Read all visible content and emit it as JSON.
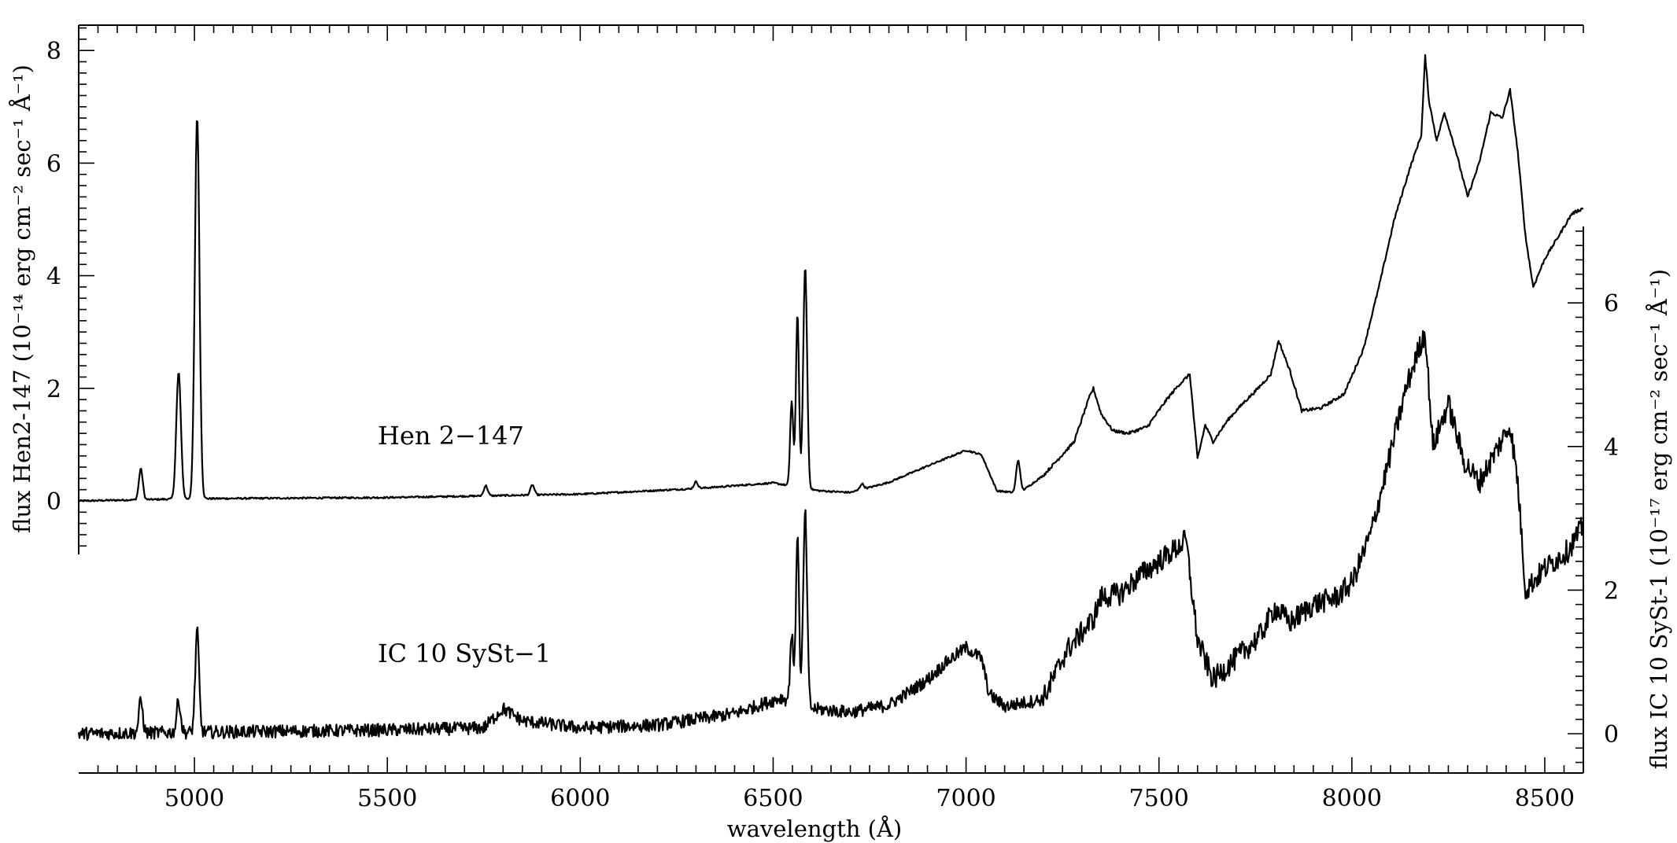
{
  "chart_data": {
    "type": "line",
    "title": "",
    "xlabel": "wavelength (Å)",
    "ylabel_left": "flux Hen2-147 (10⁻¹⁴ erg cm⁻² sec⁻¹ Å⁻¹)",
    "ylabel_right": "flux IC 10 SySt-1  (10⁻¹⁷ erg cm⁻² sec⁻¹ Å⁻¹)",
    "xlim": [
      4700,
      8600
    ],
    "ylim_left": [
      -1.0,
      8.4
    ],
    "ylim_right": [
      -0.55,
      7.2
    ],
    "x_ticks": [
      5000,
      5500,
      6000,
      6500,
      7000,
      7500,
      8000,
      8500
    ],
    "x_tick_labels": [
      "5000",
      "5500",
      "6000",
      "6500",
      "7000",
      "7500",
      "8000",
      "8500"
    ],
    "y_left_ticks": [
      0,
      2,
      4,
      6,
      8
    ],
    "y_left_tick_labels": [
      "0",
      "2",
      "4",
      "6",
      "8"
    ],
    "y_right_ticks": [
      0,
      2,
      4,
      6
    ],
    "y_right_tick_labels": [
      "0",
      "2",
      "4",
      "6"
    ],
    "grid": false,
    "series": [
      {
        "name": "Hen 2-147",
        "axis": "left",
        "baseline": [
          [
            4700,
            0.0
          ],
          [
            4850,
            0.02
          ],
          [
            5000,
            0.04
          ],
          [
            5500,
            0.06
          ],
          [
            6000,
            0.12
          ],
          [
            6300,
            0.22
          ],
          [
            6500,
            0.32
          ],
          [
            6620,
            0.18
          ],
          [
            6700,
            0.15
          ],
          [
            6800,
            0.33
          ],
          [
            6900,
            0.62
          ],
          [
            7000,
            0.9
          ],
          [
            7040,
            0.82
          ],
          [
            7080,
            0.18
          ],
          [
            7120,
            0.15
          ],
          [
            7150,
            0.2
          ],
          [
            7200,
            0.45
          ],
          [
            7280,
            1.05
          ],
          [
            7320,
            1.85
          ],
          [
            7330,
            2.0
          ],
          [
            7350,
            1.55
          ],
          [
            7380,
            1.25
          ],
          [
            7420,
            1.2
          ],
          [
            7470,
            1.32
          ],
          [
            7520,
            1.8
          ],
          [
            7550,
            2.05
          ],
          [
            7580,
            2.25
          ],
          [
            7600,
            0.75
          ],
          [
            7620,
            1.35
          ],
          [
            7640,
            1.05
          ],
          [
            7680,
            1.45
          ],
          [
            7720,
            1.75
          ],
          [
            7750,
            1.95
          ],
          [
            7790,
            2.25
          ],
          [
            7810,
            2.85
          ],
          [
            7840,
            2.3
          ],
          [
            7870,
            1.6
          ],
          [
            7920,
            1.65
          ],
          [
            7980,
            1.9
          ],
          [
            8030,
            2.7
          ],
          [
            8070,
            3.8
          ],
          [
            8110,
            5.0
          ],
          [
            8150,
            5.9
          ],
          [
            8180,
            6.5
          ],
          [
            8190,
            7.9
          ],
          [
            8200,
            7.1
          ],
          [
            8220,
            6.4
          ],
          [
            8240,
            6.9
          ],
          [
            8270,
            6.2
          ],
          [
            8300,
            5.4
          ],
          [
            8330,
            6.0
          ],
          [
            8360,
            6.9
          ],
          [
            8390,
            6.8
          ],
          [
            8410,
            7.3
          ],
          [
            8430,
            6.2
          ],
          [
            8450,
            4.7
          ],
          [
            8470,
            3.8
          ],
          [
            8500,
            4.3
          ],
          [
            8540,
            4.75
          ],
          [
            8570,
            5.1
          ],
          [
            8600,
            5.2
          ]
        ],
        "peaks": [
          [
            4861,
            0.55,
            5
          ],
          [
            4959,
            2.25,
            6
          ],
          [
            5007,
            6.8,
            6
          ],
          [
            5755,
            0.18,
            5
          ],
          [
            5876,
            0.18,
            5
          ],
          [
            6300,
            0.12,
            5
          ],
          [
            6548,
            1.5,
            4
          ],
          [
            6563,
            3.1,
            4
          ],
          [
            6583,
            3.95,
            5
          ],
          [
            6730,
            0.1,
            5
          ],
          [
            7135,
            0.55,
            5
          ]
        ],
        "noise": 0.015
      },
      {
        "name": "IC 10 SySt-1",
        "axis": "right",
        "baseline": [
          [
            4700,
            0.0
          ],
          [
            5000,
            0.02
          ],
          [
            5500,
            0.05
          ],
          [
            5750,
            0.08
          ],
          [
            5800,
            0.35
          ],
          [
            5850,
            0.18
          ],
          [
            6000,
            0.08
          ],
          [
            6200,
            0.12
          ],
          [
            6400,
            0.28
          ],
          [
            6520,
            0.5
          ],
          [
            6600,
            0.35
          ],
          [
            6700,
            0.3
          ],
          [
            6800,
            0.4
          ],
          [
            6900,
            0.75
          ],
          [
            6950,
            1.0
          ],
          [
            7000,
            1.2
          ],
          [
            7040,
            1.05
          ],
          [
            7060,
            0.55
          ],
          [
            7100,
            0.38
          ],
          [
            7200,
            0.48
          ],
          [
            7260,
            1.15
          ],
          [
            7330,
            1.6
          ],
          [
            7350,
            1.9
          ],
          [
            7400,
            1.95
          ],
          [
            7450,
            2.2
          ],
          [
            7500,
            2.4
          ],
          [
            7550,
            2.6
          ],
          [
            7570,
            2.7
          ],
          [
            7600,
            1.3
          ],
          [
            7640,
            0.75
          ],
          [
            7700,
            1.05
          ],
          [
            7760,
            1.35
          ],
          [
            7800,
            1.75
          ],
          [
            7840,
            1.55
          ],
          [
            7900,
            1.8
          ],
          [
            7960,
            1.9
          ],
          [
            8000,
            2.1
          ],
          [
            8050,
            2.8
          ],
          [
            8100,
            3.9
          ],
          [
            8140,
            4.8
          ],
          [
            8170,
            5.3
          ],
          [
            8190,
            5.6
          ],
          [
            8210,
            4.0
          ],
          [
            8250,
            4.6
          ],
          [
            8290,
            3.8
          ],
          [
            8330,
            3.5
          ],
          [
            8380,
            4.0
          ],
          [
            8410,
            4.3
          ],
          [
            8430,
            3.5
          ],
          [
            8450,
            2.0
          ],
          [
            8500,
            2.3
          ],
          [
            8560,
            2.55
          ],
          [
            8600,
            2.9
          ]
        ],
        "peaks": [
          [
            4861,
            0.45,
            5
          ],
          [
            4959,
            0.45,
            5
          ],
          [
            5007,
            1.4,
            5
          ],
          [
            6548,
            0.95,
            4
          ],
          [
            6563,
            2.4,
            4
          ],
          [
            6583,
            2.7,
            5
          ]
        ],
        "noise": 0.09
      }
    ],
    "annotations": [
      {
        "text": "Hen 2−147",
        "x": 5800,
        "y": 1.5,
        "axis": "left"
      },
      {
        "text": "IC 10 SySt−1",
        "x": 5800,
        "y": 1.1,
        "axis": "right"
      }
    ]
  }
}
